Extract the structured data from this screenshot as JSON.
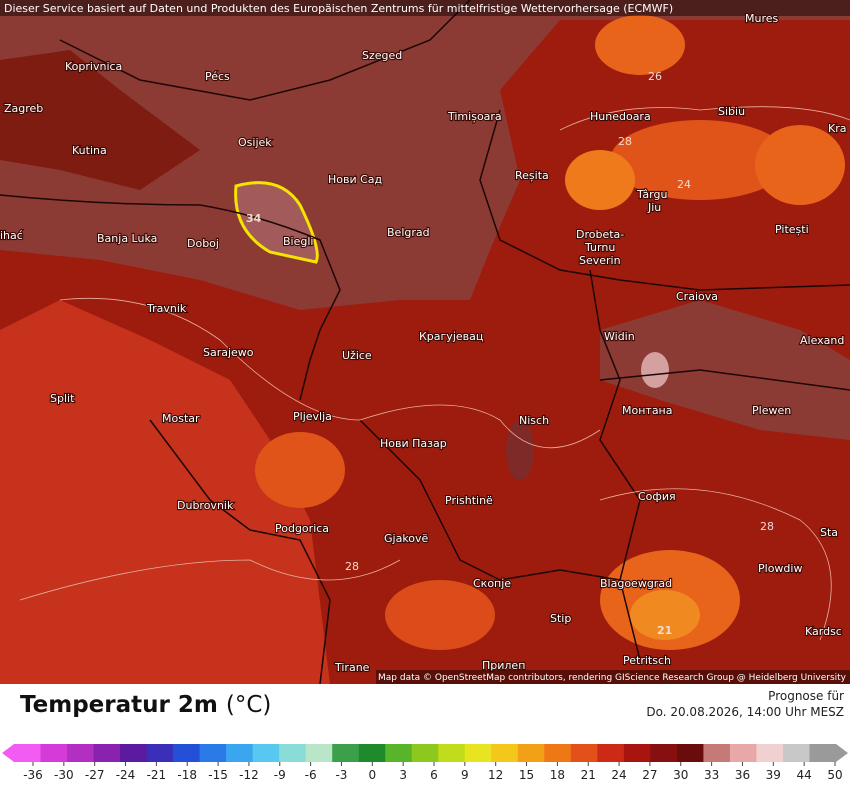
{
  "header": {
    "credit": "Dieser Service basiert auf Daten und Produkten des Europäischen Zentrums für mittelfristige Wettervorhersage (ECMWF)"
  },
  "map": {
    "places": [
      "Mures",
      "Koprivnica",
      "Pécs",
      "Szeged",
      "Zagreb",
      "Osijek",
      "Timișoara",
      "Hunedoara",
      "Sibiu",
      "Kra",
      "Kutina",
      "Нови Сад",
      "Reșita",
      "Târgu",
      "Jiu",
      "ihać",
      "Banja Luka",
      "Doboj",
      "Biegli",
      "Belgrad",
      "Drobeta-",
      "Turnu",
      "Severin",
      "Pitești",
      "Craiova",
      "Travnik",
      "Крагујевац",
      "Sarajewo",
      "Užice",
      "Widin",
      "Alexand",
      "Split",
      "Mostar",
      "Pljevlja",
      "Монтана",
      "Plewen",
      "Нови Пазар",
      "Nisch",
      "Prishtinë",
      "София",
      "Dubrovnik",
      "Podgorica",
      "Gjakovë",
      "Sta",
      "Plowdiw",
      "Скопје",
      "Blagoewgrad",
      "Stip",
      "Kardsc",
      "Tirane",
      "Прилеп",
      "Petritsch"
    ],
    "contour_labels": [
      "26",
      "28",
      "24",
      "34",
      "28",
      "28",
      "21"
    ],
    "attribution": "Map data © OpenStreetMap contributors, rendering GIScience Research Group @ Heidelberg University"
  },
  "legend": {
    "title": "Temperatur 2m",
    "unit": "(°C)",
    "forecast_label": "Prognose für",
    "forecast_time": "Do. 20.08.2026, 14:00 Uhr MESZ",
    "scale": {
      "ticks": [
        -36,
        -30,
        -27,
        -24,
        -21,
        -18,
        -15,
        -12,
        -9,
        -6,
        -3,
        0,
        3,
        6,
        9,
        12,
        15,
        18,
        21,
        24,
        27,
        30,
        33,
        36,
        39,
        44,
        50
      ],
      "colors": [
        "#f25cf2",
        "#d43bd8",
        "#b32fc2",
        "#8a22b0",
        "#5b1aa0",
        "#3a2fb8",
        "#2450d8",
        "#2a7ae8",
        "#3aa6f0",
        "#59c8f0",
        "#8adcd8",
        "#b9e6c8",
        "#3ca04a",
        "#1f8a2c",
        "#58b428",
        "#8cc81e",
        "#c0dc1a",
        "#e8e420",
        "#f4c81a",
        "#f2a016",
        "#ee7814",
        "#e4501a",
        "#cc2a16",
        "#a8140e",
        "#861010",
        "#6a0c0c",
        "#c67a78",
        "#e8a8a8",
        "#f0d0d0",
        "#c8c8c8",
        "#9a9a9a"
      ]
    }
  }
}
